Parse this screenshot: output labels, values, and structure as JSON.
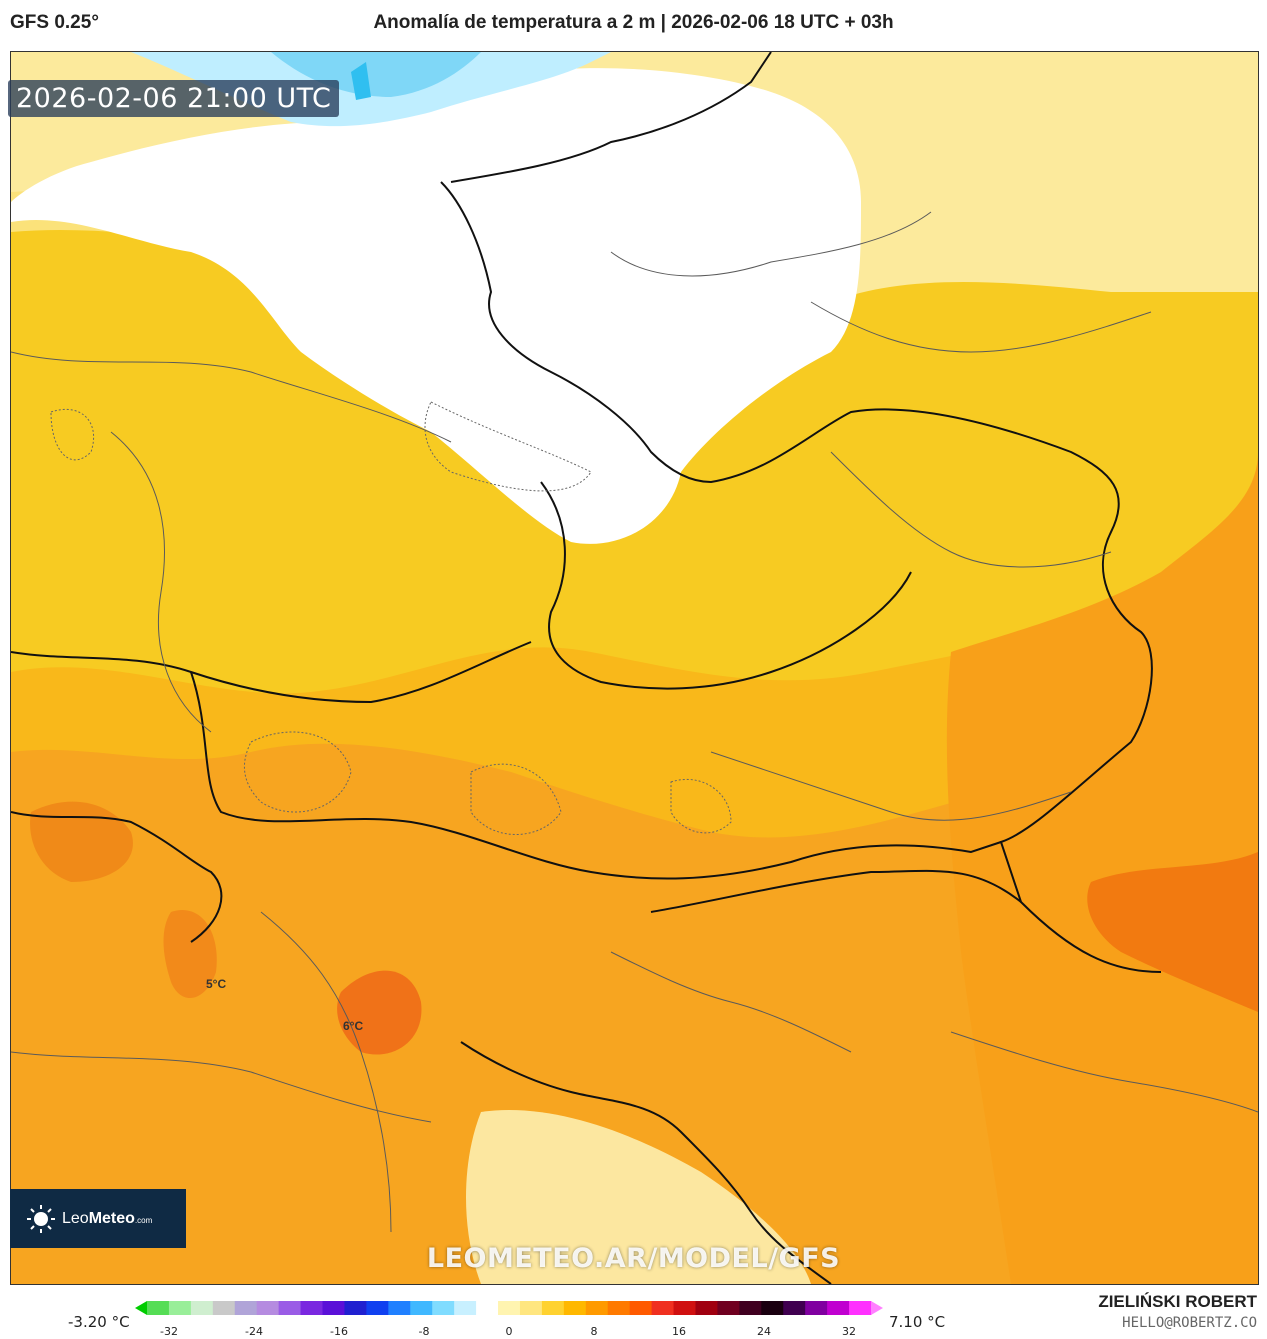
{
  "header": {
    "model": "GFS 0.25°",
    "title": "Anomalía de temperatura a 2 m | 2026-02-06 18 UTC + 03h"
  },
  "map": {
    "timestamp": "2026-02-06 21:00 UTC",
    "watermark": "LEOMETEO.AR/MODEL/GFS",
    "labels": [
      {
        "text": "5°C"
      },
      {
        "text": "6°C"
      }
    ]
  },
  "logo": {
    "name_light": "Leo",
    "name_bold": "Meteo",
    "suffix": ".com",
    "icon": "sun-icon"
  },
  "colorbar": {
    "min_label": "-3.20 °C",
    "max_label": "7.10 °C",
    "ticks": [
      "-32",
      "-24",
      "-16",
      "-8",
      "0",
      "8",
      "16",
      "24",
      "32"
    ],
    "colors": [
      "#00cc00",
      "#55dd55",
      "#99ee99",
      "#cfeecf",
      "#c9c9c9",
      "#b0a4d8",
      "#b58be0",
      "#9a5ce6",
      "#7a28e0",
      "#5a10d8",
      "#2020d0",
      "#1040f0",
      "#2080ff",
      "#40b8ff",
      "#80dcff",
      "#c8f0ff",
      "#ffffff",
      "#fff4b0",
      "#ffe680",
      "#ffd230",
      "#ffb800",
      "#ff9a00",
      "#ff7a00",
      "#ff5a00",
      "#f03020",
      "#d01010",
      "#a00010",
      "#700020",
      "#400020",
      "#1a0010",
      "#400050",
      "#8000a0",
      "#c000d0",
      "#ff30ff",
      "#ff80ff"
    ]
  },
  "author": {
    "name": "ZIELIŃSKI ROBERT",
    "email": "HELLO@ROBERTZ.CO"
  }
}
